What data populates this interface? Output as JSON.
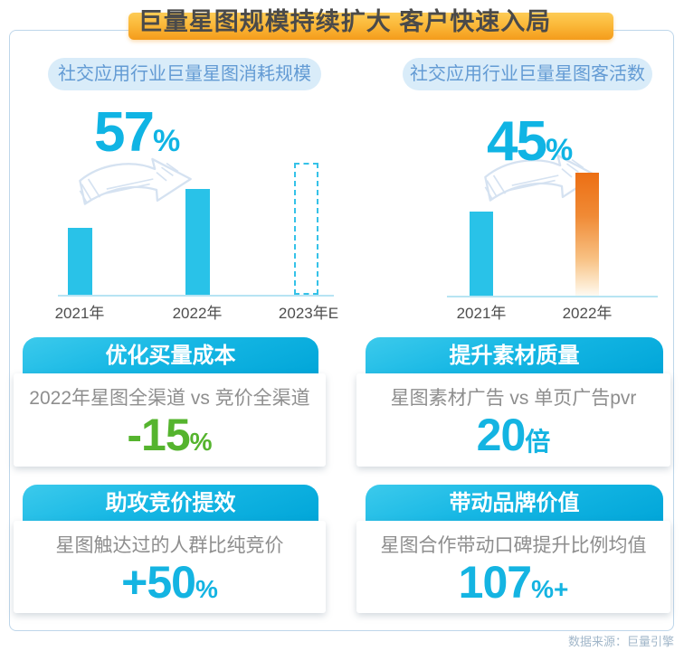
{
  "title": "巨量星图规模持续扩大 客户快速入局",
  "source_note": "数据来源：巨量引擎",
  "colors": {
    "banner_gradient_top": "#fdcb55",
    "banner_gradient_bottom": "#f49c1b",
    "accent_cyan": "#14b4e2",
    "bar_cyan": "#29c2e8",
    "bar_orange_top": "#ec6f14",
    "accent_green": "#55b42e",
    "pill_bg": "#d9ecf9",
    "pill_text": "#639bd4",
    "frame_border": "#bed6ea"
  },
  "chart_data": [
    {
      "type": "bar",
      "title": "社交应用行业巨量星图消耗规模",
      "categories": [
        "2021年",
        "2022年",
        "2023年E"
      ],
      "values": [
        74,
        117,
        146
      ],
      "values_note": "relative bar heights in px; no numeric axis shown",
      "bar_styles": [
        "solid-cyan",
        "solid-cyan",
        "dashed-outline-estimate"
      ],
      "growth_value": "57",
      "growth_unit": "%",
      "grid": false,
      "legend": false
    },
    {
      "type": "bar",
      "title": "社交应用行业巨量星图客活数",
      "categories": [
        "2021年",
        "2022年"
      ],
      "values": [
        93,
        136
      ],
      "values_note": "relative bar heights in px; no numeric axis shown",
      "bar_styles": [
        "solid-cyan",
        "orange-gradient-highlight"
      ],
      "growth_value": "45",
      "growth_unit": "%",
      "grid": false,
      "legend": false
    }
  ],
  "cards": [
    {
      "header": "优化买量成本",
      "subtitle": "2022年星图全渠道 vs 竞价全渠道",
      "value": "-15",
      "suffix": "%",
      "value_color": "#55b42e"
    },
    {
      "header": "提升素材质量",
      "subtitle": "星图素材广告 vs 单页广告pvr",
      "value": "20",
      "suffix": "倍",
      "value_color": "#14b4e2"
    },
    {
      "header": "助攻竞价提效",
      "subtitle": "星图触达过的人群比纯竞价",
      "value": "+50",
      "suffix": "%",
      "value_color": "#14b4e2"
    },
    {
      "header": "带动品牌价值",
      "subtitle": "星图合作带动口碑提升比例均值",
      "value": "107",
      "suffix": "%+",
      "value_color": "#14b4e2"
    }
  ]
}
